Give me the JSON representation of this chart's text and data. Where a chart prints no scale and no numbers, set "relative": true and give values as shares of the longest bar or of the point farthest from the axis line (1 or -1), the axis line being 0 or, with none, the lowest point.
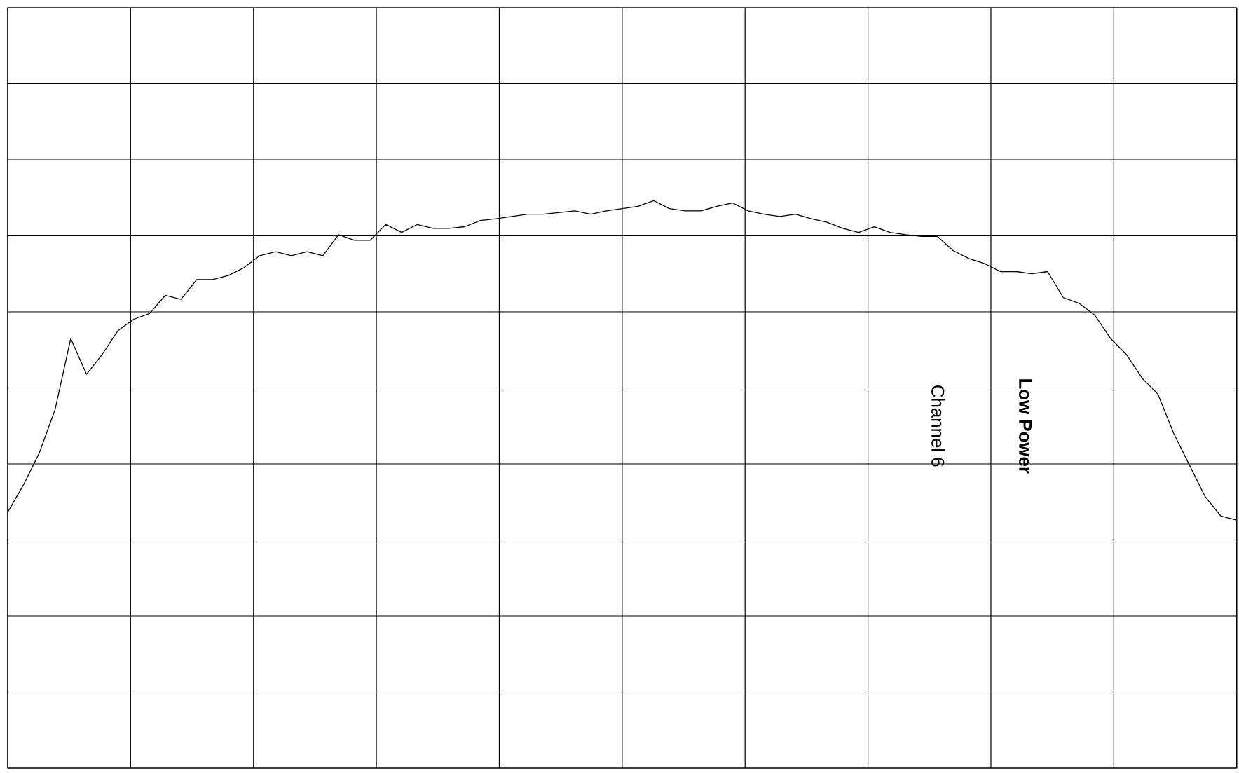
{
  "chart_data": {
    "type": "line",
    "relative": true,
    "grid": true,
    "marker": "none",
    "line_style": "solid",
    "categories": [
      null,
      null,
      null,
      null,
      null,
      null,
      null,
      null,
      null,
      null,
      null,
      null,
      null,
      null,
      null,
      null,
      null,
      null,
      null,
      null,
      null,
      null,
      null,
      null,
      null,
      null,
      null,
      null,
      null,
      null,
      null,
      null,
      null,
      null,
      null,
      null,
      null,
      null,
      null,
      null,
      null,
      null,
      null,
      null,
      null,
      null,
      null,
      null,
      null,
      null,
      null,
      null,
      null,
      null,
      null,
      null,
      null,
      null,
      null,
      null,
      null,
      null,
      null,
      null,
      null,
      null,
      null,
      null,
      null,
      null,
      null,
      null,
      null,
      null,
      null,
      null,
      null,
      null,
      null
    ],
    "series": [
      {
        "color": "#000000",
        "values": [
          0.451,
          0.499,
          0.555,
          0.631,
          0.757,
          0.694,
          0.729,
          0.771,
          0.791,
          0.801,
          0.833,
          0.826,
          0.861,
          0.861,
          0.868,
          0.882,
          0.903,
          0.91,
          0.903,
          0.91,
          0.903,
          0.94,
          0.93,
          0.93,
          0.958,
          0.944,
          0.958,
          0.951,
          0.951,
          0.954,
          0.965,
          0.968,
          0.972,
          0.976,
          0.976,
          0.979,
          0.982,
          0.976,
          0.982,
          0.986,
          0.99,
          1,
          0.986,
          0.982,
          0.982,
          0.99,
          0.996,
          0.982,
          0.976,
          0.972,
          0.976,
          0.968,
          0.962,
          0.951,
          0.944,
          0.954,
          0.944,
          0.94,
          0.937,
          0.937,
          0.912,
          0.898,
          0.889,
          0.875,
          0.875,
          0.871,
          0.875,
          0.829,
          0.819,
          0.798,
          0.757,
          0.729,
          0.687,
          0.659,
          0.59,
          0.534,
          0.478,
          0.444,
          0.437
        ]
      }
    ],
    "annotations": [
      "Channel 6",
      "Low Power"
    ]
  }
}
